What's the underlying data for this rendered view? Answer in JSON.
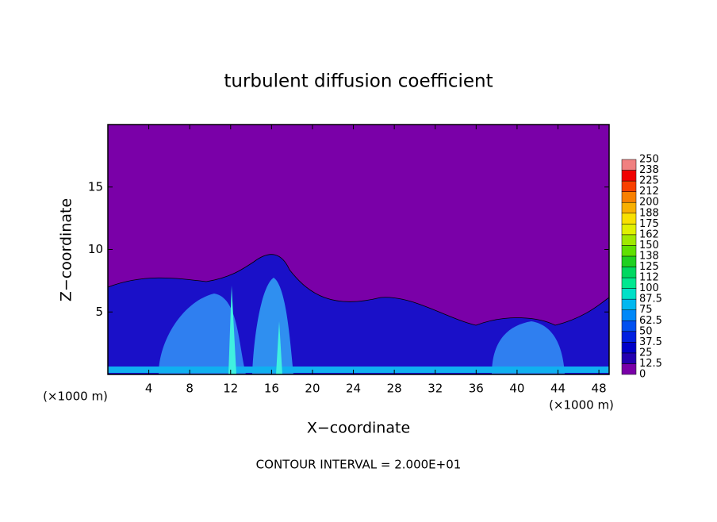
{
  "chart_data": {
    "type": "contour",
    "title": "turbulent diffusion coefficient",
    "x_label": "X−coordinate",
    "y_label": "Z−coordinate",
    "x_unit": "(×1000 m)",
    "footnote": "CONTOUR INTERVAL = 2.000E+01",
    "xlim": [
      0,
      49
    ],
    "xticks": [
      4,
      8,
      12,
      16,
      20,
      24,
      28,
      32,
      36,
      40,
      44,
      48
    ],
    "ylim": [
      0,
      20
    ],
    "yticks": [
      5,
      10,
      15
    ],
    "colorbar": {
      "levels": [
        0,
        12.5,
        25,
        37.5,
        50,
        62.5,
        75,
        87.5,
        100,
        112,
        125,
        138,
        150,
        162,
        175,
        188,
        200,
        212,
        225,
        238,
        250
      ],
      "colors": [
        "#7a00a8",
        "#2400b0",
        "#0000c8",
        "#0020e0",
        "#0050f0",
        "#0088f8",
        "#00b8f0",
        "#00e0c8",
        "#00e890",
        "#00d860",
        "#20d020",
        "#60e000",
        "#a0e800",
        "#e0f000",
        "#f8e000",
        "#f8b000",
        "#f88000",
        "#f84000",
        "#f00000",
        "#f08080"
      ]
    }
  }
}
